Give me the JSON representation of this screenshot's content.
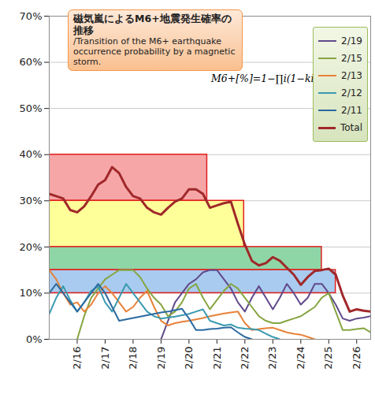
{
  "chart_data": {
    "type": "line",
    "title": "磁気嵐によるM6+地震発生確率の推移",
    "subtitle": "/Transition of the M6+ earthquake occurrence probability by a magnetic storm.",
    "formula": "M6+[%]=1−∏i(1−ki)",
    "x": [
      15,
      15.25,
      15.5,
      15.75,
      16,
      16.25,
      16.5,
      16.75,
      17,
      17.25,
      17.5,
      17.75,
      18,
      18.25,
      18.5,
      18.75,
      19,
      19.25,
      19.5,
      19.75,
      20,
      20.25,
      20.5,
      20.75,
      21,
      21.25,
      21.5,
      21.75,
      22,
      22.25,
      22.5,
      22.75,
      23,
      23.25,
      23.5,
      23.75,
      24,
      24.25,
      24.5,
      24.75,
      25,
      25.25,
      25.5,
      25.75,
      26,
      26.25,
      26.5
    ],
    "series": [
      {
        "name": "2/19",
        "color": "#604a8b",
        "line_style": "solid",
        "values": [
          null,
          null,
          null,
          null,
          null,
          null,
          null,
          null,
          null,
          null,
          null,
          null,
          null,
          null,
          null,
          null,
          0,
          4,
          8,
          10,
          12,
          13,
          14.5,
          15,
          15,
          13,
          11,
          8,
          6,
          9,
          11.5,
          9,
          6.5,
          9,
          12,
          10,
          7.5,
          9,
          12,
          12,
          10,
          7.5,
          4.5,
          4,
          4.5,
          4.7,
          5
        ]
      },
      {
        "name": "2/15",
        "color": "#86a541",
        "line_style": "solid",
        "values": [
          null,
          null,
          null,
          null,
          0,
          5,
          9,
          11,
          13,
          14,
          15,
          15,
          15,
          13.5,
          11,
          9,
          7.5,
          5,
          6,
          8,
          11,
          12,
          9,
          6.5,
          8.5,
          10.5,
          12,
          11,
          9,
          7,
          5,
          4,
          3.5,
          3.5,
          4,
          4.5,
          5,
          6,
          7,
          9,
          10,
          6,
          2,
          2,
          2.2,
          2.4,
          1.5
        ]
      },
      {
        "name": "2/13",
        "color": "#e8823a",
        "line_style": "solid",
        "values": [
          15,
          13,
          10,
          7.5,
          8,
          6,
          7.5,
          10,
          11.5,
          10,
          8,
          6,
          7,
          9,
          10.5,
          7,
          4,
          3,
          3.5,
          3.8,
          4,
          4.3,
          4.6,
          5,
          5.3,
          5.6,
          5.8,
          6,
          3.5,
          2,
          2.2,
          2.4,
          2.5,
          2,
          1.5,
          1.2,
          1,
          0.5,
          0,
          null,
          null,
          null,
          null,
          null,
          null,
          null,
          null
        ]
      },
      {
        "name": "2/12",
        "color": "#3a9ab0",
        "line_style": "solid",
        "values": [
          5.5,
          9,
          11.5,
          8.5,
          6,
          8,
          10.5,
          11.5,
          8,
          6,
          9,
          12,
          10,
          8,
          6,
          5,
          4.5,
          4.7,
          4.9,
          5.2,
          5.5,
          6,
          6.5,
          4,
          3.5,
          3,
          3.2,
          2.5,
          2.3,
          2.2,
          2,
          1.2,
          0.5,
          0,
          null,
          null,
          null,
          null,
          null,
          null,
          null,
          null,
          null,
          null,
          null,
          null,
          null
        ]
      },
      {
        "name": "2/11",
        "color": "#2c6aa0",
        "line_style": "solid",
        "values": [
          10,
          12,
          10,
          8,
          6,
          8,
          10,
          12,
          10,
          7,
          4,
          4.3,
          4.6,
          4.9,
          5.2,
          5.5,
          5.8,
          6,
          6.3,
          6.6,
          4.5,
          2,
          2,
          2.2,
          2.3,
          2.5,
          2.6,
          1.5,
          0.5,
          0,
          null,
          null,
          null,
          null,
          null,
          null,
          null,
          null,
          null,
          null,
          null,
          null,
          null,
          null,
          null,
          null,
          null
        ]
      },
      {
        "name": "Total",
        "color": "#a0282a",
        "line_style": "thick",
        "values": [
          31.5,
          31,
          30.5,
          28,
          27.5,
          28.8,
          31,
          33.5,
          34.5,
          37.3,
          36,
          33,
          31,
          30.5,
          28.5,
          27.5,
          27,
          28.5,
          29.8,
          30.5,
          32.5,
          32.5,
          31.5,
          28.5,
          29,
          29.5,
          29.8,
          25,
          20.5,
          17,
          16,
          16.5,
          17.8,
          17,
          15.5,
          14,
          11.8,
          13.5,
          14.8,
          15,
          15.3,
          14,
          9.5,
          6,
          6.5,
          6.2,
          6
        ]
      }
    ],
    "regions": [
      {
        "x1": 15,
        "x2": 20.65,
        "y1": 30,
        "y2": 40,
        "color": "#f6a6a6"
      },
      {
        "x1": 15,
        "x2": 21.97,
        "y1": 20,
        "y2": 30,
        "color": "#ffff99"
      },
      {
        "x1": 15,
        "x2": 24.75,
        "y1": 15,
        "y2": 20,
        "color": "#8fd6a6"
      },
      {
        "x1": 15,
        "x2": 25.25,
        "y1": 10,
        "y2": 15,
        "color": "#a9cbef"
      }
    ],
    "xlim": [
      15,
      26.5
    ],
    "xticks": [
      {
        "value": 16,
        "label": "2/16"
      },
      {
        "value": 17,
        "label": "2/17"
      },
      {
        "value": 18,
        "label": "2/18"
      },
      {
        "value": 19,
        "label": "2/19"
      },
      {
        "value": 20,
        "label": "2/20"
      },
      {
        "value": 21,
        "label": "2/21"
      },
      {
        "value": 22,
        "label": "2/22"
      },
      {
        "value": 23,
        "label": "2/23"
      },
      {
        "value": 24,
        "label": "2/24"
      },
      {
        "value": 25,
        "label": "2/25"
      },
      {
        "value": 26,
        "label": "2/26"
      }
    ],
    "ylim": [
      0,
      70
    ],
    "yticks": [
      {
        "value": 0,
        "label": "0%"
      },
      {
        "value": 10,
        "label": "10%"
      },
      {
        "value": 20,
        "label": "20%"
      },
      {
        "value": 30,
        "label": "30%"
      },
      {
        "value": 40,
        "label": "40%"
      },
      {
        "value": 50,
        "label": "50%"
      },
      {
        "value": 60,
        "label": "60%"
      },
      {
        "value": 70,
        "label": "70%"
      }
    ],
    "grid": true,
    "legend": "top-right"
  }
}
